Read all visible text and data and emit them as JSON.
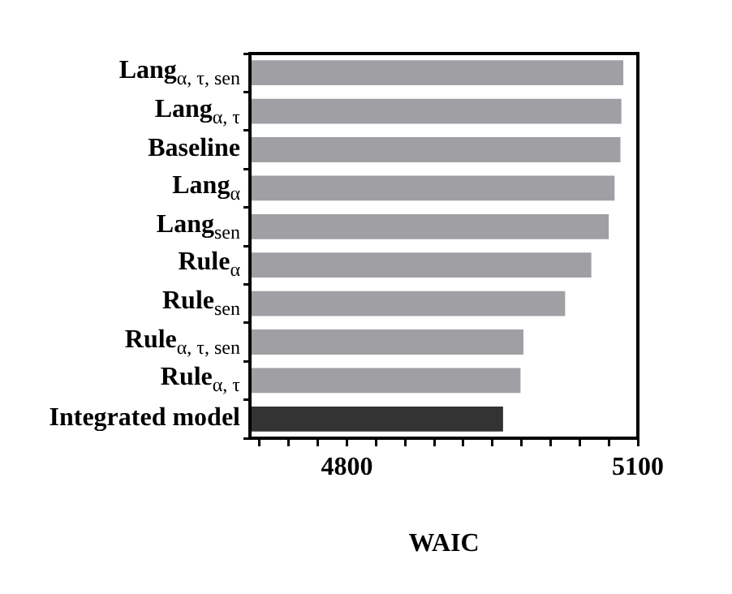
{
  "chart_data": {
    "type": "bar",
    "orientation": "horizontal",
    "xlabel": "WAIC",
    "categories": [
      "Lang$_{α, τ, sen}$",
      "Lang$_{α, τ}$",
      "Baseline",
      "Lang$_{α}$",
      "Lang$_{sen}$",
      "Rule$_{α}$",
      "Rule$_{sen}$",
      "Rule$_{α, τ, sen}$",
      "Rule$_{α, τ}$",
      "Integrated model"
    ],
    "values": [
      5085,
      5083,
      5082,
      5076,
      5070,
      5052,
      5025,
      4982,
      4979,
      4961
    ],
    "colors": [
      "#a0a0a4",
      "#a0a0a4",
      "#a0a0a4",
      "#a0a0a4",
      "#a0a0a4",
      "#a0a0a4",
      "#a0a0a4",
      "#a0a0a4",
      "#a0a0a4",
      "#333333"
    ],
    "xlim": [
      4700,
      5100
    ],
    "xticks": [
      {
        "value": 4710,
        "label": null
      },
      {
        "value": 4740,
        "label": null
      },
      {
        "value": 4770,
        "label": null
      },
      4800,
      {
        "value": 4830,
        "label": null
      },
      {
        "value": 4860,
        "label": null
      },
      {
        "value": 4890,
        "label": null
      },
      {
        "value": 4920,
        "label": null
      },
      {
        "value": 4950,
        "label": null
      },
      {
        "value": 4980,
        "label": null
      },
      {
        "value": 5010,
        "label": null
      },
      {
        "value": 5040,
        "label": null
      },
      {
        "value": 5070,
        "label": null
      },
      5100
    ],
    "grid": false,
    "legend": false
  }
}
